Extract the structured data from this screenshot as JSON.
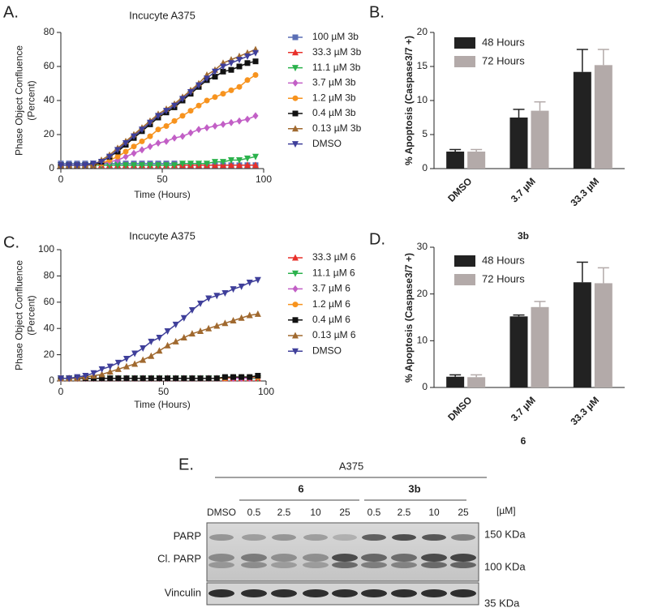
{
  "chart_data": [
    {
      "type": "line",
      "panel": "A.",
      "title": "Incucyte A375",
      "xlabel": "Time (Hours)",
      "ylabel": [
        "Phase Object Confluence",
        "(Percent)"
      ],
      "x": [
        0,
        4,
        8,
        12,
        16,
        20,
        24,
        28,
        32,
        36,
        40,
        44,
        48,
        52,
        56,
        60,
        64,
        68,
        72,
        76,
        80,
        84,
        88,
        92,
        96
      ],
      "xlim": [
        0,
        100
      ],
      "xticks": [
        0,
        50,
        100
      ],
      "ylim": [
        0,
        80
      ],
      "yticks": [
        0,
        20,
        40,
        60,
        80
      ],
      "legend": "right",
      "series": [
        {
          "name": "100 µM 3b",
          "color": "#5b6fb5",
          "marker": "square",
          "values": [
            3,
            3,
            3,
            3,
            3,
            3,
            3,
            3,
            3,
            3,
            3,
            3,
            3,
            3,
            3,
            2,
            2,
            2,
            2,
            2,
            2,
            2,
            2,
            2,
            2
          ]
        },
        {
          "name": "33.3 µM 3b",
          "color": "#e8302a",
          "marker": "triangle-up",
          "values": [
            2,
            2,
            2,
            2,
            2,
            2,
            2,
            2,
            2,
            2,
            2,
            2,
            2,
            2,
            2,
            2,
            2,
            2,
            2,
            2,
            2,
            2,
            2,
            2,
            2
          ]
        },
        {
          "name": "11.1  µM 3b",
          "color": "#2bb24c",
          "marker": "triangle-down",
          "values": [
            2,
            2,
            2,
            2,
            2,
            2,
            2,
            2,
            2,
            2,
            2,
            2,
            2,
            2,
            2,
            3,
            3,
            3,
            3,
            4,
            4,
            5,
            5,
            6,
            7
          ]
        },
        {
          "name": "3.7  µM 3b",
          "color": "#c25fc6",
          "marker": "diamond",
          "values": [
            2,
            2,
            2,
            2,
            2,
            3,
            4,
            5,
            7,
            9,
            11,
            13,
            15,
            16,
            18,
            19,
            21,
            23,
            24,
            25,
            26,
            27,
            28,
            29,
            31
          ]
        },
        {
          "name": "1.2  µM 3b",
          "color": "#f7931e",
          "marker": "circle",
          "values": [
            2,
            2,
            2,
            2,
            2,
            3,
            5,
            7,
            10,
            13,
            16,
            19,
            23,
            25,
            28,
            31,
            34,
            37,
            40,
            42,
            44,
            46,
            48,
            52,
            55
          ]
        },
        {
          "name": "0.4  µM 3b",
          "color": "#111111",
          "marker": "square",
          "values": [
            2,
            2,
            2,
            2,
            2,
            4,
            7,
            10,
            14,
            18,
            22,
            26,
            30,
            33,
            36,
            40,
            44,
            48,
            52,
            54,
            57,
            58,
            60,
            62,
            63
          ]
        },
        {
          "name": "0.13  µM 3b",
          "color": "#a0692f",
          "marker": "triangle-up",
          "values": [
            2,
            2,
            2,
            2,
            2,
            5,
            8,
            12,
            16,
            20,
            24,
            28,
            32,
            35,
            38,
            42,
            46,
            50,
            55,
            58,
            62,
            64,
            66,
            68,
            70
          ]
        },
        {
          "name": "DMSO",
          "color": "#3f3f9a",
          "marker": "triangle-down",
          "values": [
            2,
            2,
            2,
            2,
            3,
            4,
            7,
            11,
            15,
            19,
            23,
            27,
            31,
            34,
            37,
            41,
            45,
            49,
            53,
            57,
            60,
            62,
            64,
            66,
            68
          ]
        }
      ]
    },
    {
      "type": "bar",
      "panel": "B.",
      "xlabel": "3b",
      "ylabel": [
        "% Apoptosis (Caspase3/7 +)"
      ],
      "categories": [
        "DMSO",
        "3.7 µM",
        "33.3 µM"
      ],
      "ylim": [
        0,
        20
      ],
      "yticks": [
        0,
        5,
        10,
        15,
        20
      ],
      "legend": "top-left",
      "series": [
        {
          "name": "48 Hours",
          "color": "#222222",
          "values": [
            2.5,
            7.5,
            14.2
          ],
          "errors": [
            0.3,
            1.2,
            3.3
          ]
        },
        {
          "name": "72 Hours",
          "color": "#b3aaa9",
          "values": [
            2.5,
            8.5,
            15.2
          ],
          "errors": [
            0.3,
            1.3,
            2.3
          ]
        }
      ]
    },
    {
      "type": "line",
      "panel": "C.",
      "title": "Incucyte A375",
      "xlabel": "Time (Hours)",
      "ylabel": [
        "Phase Object Confluence",
        "(Percent)"
      ],
      "x": [
        0,
        4,
        8,
        12,
        16,
        20,
        24,
        28,
        32,
        36,
        40,
        44,
        48,
        52,
        56,
        60,
        64,
        68,
        72,
        76,
        80,
        84,
        88,
        92,
        96
      ],
      "xlim": [
        0,
        100
      ],
      "xticks": [
        0,
        50,
        100
      ],
      "ylim": [
        0,
        100
      ],
      "yticks": [
        0,
        20,
        40,
        60,
        80,
        100
      ],
      "legend": "right",
      "series": [
        {
          "name": "33.3 µM 6",
          "color": "#e8302a",
          "marker": "triangle-up",
          "values": [
            2,
            2,
            2,
            2,
            2,
            2,
            2,
            2,
            2,
            2,
            2,
            2,
            2,
            2,
            2,
            2,
            2,
            2,
            2,
            2,
            2,
            2,
            2,
            2,
            2
          ]
        },
        {
          "name": "11.1  µM 6",
          "color": "#2bb24c",
          "marker": "triangle-down",
          "values": [
            2,
            2,
            2,
            2,
            2,
            2,
            2,
            2,
            2,
            2,
            2,
            2,
            2,
            2,
            2,
            2,
            2,
            2,
            2,
            2,
            2,
            2,
            2,
            2,
            2
          ]
        },
        {
          "name": "3.7  µM 6",
          "color": "#c25fc6",
          "marker": "diamond",
          "values": [
            2,
            2,
            2,
            2,
            2,
            2,
            2,
            2,
            2,
            2,
            2,
            2,
            2,
            2,
            2,
            2,
            2,
            2,
            2,
            2,
            2,
            2,
            2,
            2,
            3
          ]
        },
        {
          "name": "1.2  µM 6",
          "color": "#f7931e",
          "marker": "circle",
          "values": [
            2,
            2,
            2,
            2,
            2,
            2,
            2,
            2,
            2,
            2,
            2,
            2,
            2,
            2,
            2,
            2,
            2,
            2,
            2,
            2,
            2,
            3,
            3,
            3,
            3
          ]
        },
        {
          "name": "0.4  µM 6",
          "color": "#111111",
          "marker": "square",
          "values": [
            2,
            2,
            2,
            2,
            2,
            2,
            2,
            2,
            2,
            2,
            2,
            2,
            2,
            2,
            2,
            2,
            2,
            2,
            2,
            2,
            3,
            3,
            3,
            3,
            4
          ]
        },
        {
          "name": "0.13  µM 6",
          "color": "#a0692f",
          "marker": "triangle-up",
          "values": [
            2,
            2,
            2,
            3,
            4,
            5,
            7,
            9,
            11,
            13,
            16,
            19,
            23,
            27,
            30,
            33,
            36,
            38,
            40,
            42,
            44,
            46,
            48,
            50,
            51
          ]
        },
        {
          "name": "DMSO",
          "color": "#3f3f9a",
          "marker": "triangle-down",
          "values": [
            2,
            2,
            3,
            4,
            6,
            9,
            11,
            14,
            17,
            21,
            25,
            30,
            33,
            38,
            43,
            48,
            54,
            59,
            63,
            65,
            67,
            70,
            72,
            75,
            77
          ]
        }
      ]
    },
    {
      "type": "bar",
      "panel": "D.",
      "xlabel": "6",
      "ylabel": [
        "% Apoptosis (Caspase3/7 +)"
      ],
      "categories": [
        "DMSO",
        "3.7 µM",
        "33.3 µM"
      ],
      "ylim": [
        0,
        30
      ],
      "yticks": [
        0,
        10,
        20,
        30
      ],
      "legend": "top-left",
      "series": [
        {
          "name": "48 Hours",
          "color": "#222222",
          "values": [
            2.3,
            15.2,
            22.5
          ],
          "errors": [
            0.4,
            0.3,
            4.3
          ]
        },
        {
          "name": "72 Hours",
          "color": "#b3aaa9",
          "values": [
            2.2,
            17.2,
            22.3
          ],
          "errors": [
            0.5,
            1.2,
            3.3
          ]
        }
      ]
    }
  ],
  "blot": {
    "panel": "E.",
    "cell_line": "A375",
    "control": "DMSO",
    "unit": "[µM]",
    "groups": [
      {
        "name": "6",
        "lanes": [
          "0.5",
          "2.5",
          "10",
          "25"
        ]
      },
      {
        "name": "3b",
        "lanes": [
          "0.5",
          "2.5",
          "10",
          "25"
        ]
      }
    ],
    "bands": [
      "PARP",
      "Cl. PARP",
      "Vinculin"
    ],
    "markers": [
      "150 KDa",
      "100 KDa",
      "35 KDa"
    ]
  }
}
